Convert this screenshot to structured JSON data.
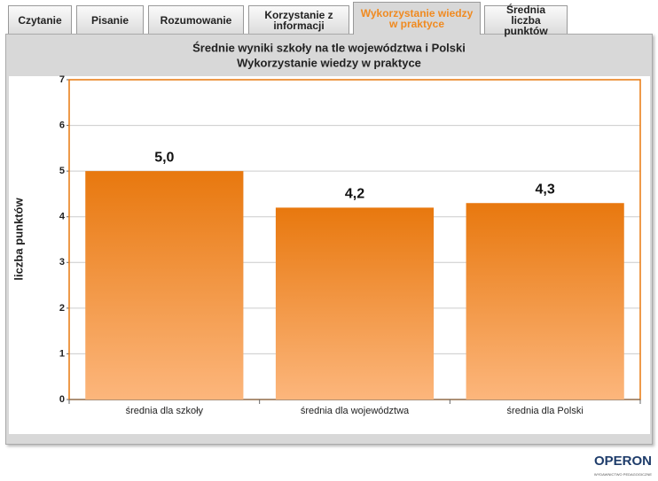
{
  "tabs": [
    "Czytanie",
    "Pisanie",
    "Rozumowanie",
    "Korzystanie z informacji",
    "Wykorzystanie wiedzy w praktyce",
    "Średnia liczba punktów"
  ],
  "chart_data": {
    "type": "bar",
    "title": "Średnie wyniki szkoły na tle województwa i Polski",
    "subtitle": "Wykorzystanie wiedzy w praktyce",
    "y_label": "liczba punktów",
    "categories": [
      "średnia dla szkoły",
      "średnia dla województwa",
      "średnia dla Polski"
    ],
    "values": [
      5.0,
      4.2,
      4.3
    ],
    "value_labels": [
      "5,0",
      "4,2",
      "4,3"
    ],
    "color": "#e8780e",
    "ylim": [
      0,
      7
    ],
    "yticks": [
      0,
      1,
      2,
      3,
      4,
      5,
      6,
      7
    ],
    "grid": true
  },
  "logo": "OPERON",
  "logo_sub": "WYDAWNICTWO PEDAGOGICZNE"
}
